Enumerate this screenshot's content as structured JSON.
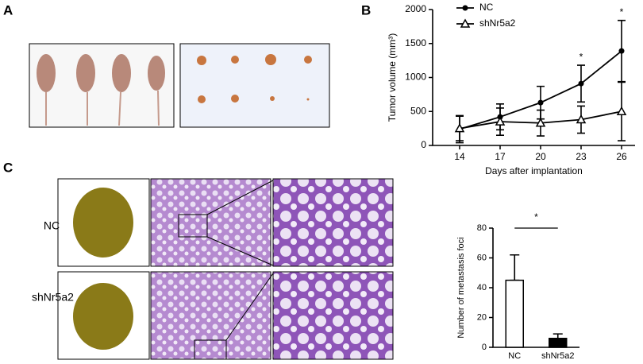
{
  "panels": {
    "a": "A",
    "b": "B",
    "c": "C"
  },
  "rows": [
    "NC",
    "shNr5a2"
  ],
  "chart_data": [
    {
      "type": "line",
      "xlabel": "Days after implantation",
      "ylabel": "Tumor volume (mm³)",
      "x": [
        14,
        17,
        20,
        23,
        26
      ],
      "xlim": [
        12,
        27
      ],
      "xticks": [
        14,
        17,
        20,
        23,
        26
      ],
      "ylim": [
        0,
        2000
      ],
      "yticks": [
        0,
        500,
        1000,
        1500,
        2000
      ],
      "series": [
        {
          "name": "NC",
          "color": "#000000",
          "marker": "circle",
          "values": [
            240,
            420,
            630,
            910,
            1390
          ],
          "errors": [
            200,
            190,
            240,
            270,
            450
          ]
        },
        {
          "name": "shNr5a2",
          "color": "#000000",
          "marker": "triangle",
          "values": [
            250,
            350,
            330,
            380,
            500
          ],
          "errors": [
            180,
            200,
            190,
            200,
            430
          ]
        }
      ],
      "annotations": [
        {
          "text": "*",
          "x": 23
        },
        {
          "text": "*",
          "x": 26
        }
      ]
    },
    {
      "type": "bar",
      "ylabel": "Number of metastasis foci",
      "categories": [
        "NC",
        "shNr5a2"
      ],
      "values": [
        45,
        6
      ],
      "errors": [
        17,
        3
      ],
      "colors": [
        "#ffffff",
        "#000000"
      ],
      "ylim": [
        0,
        80
      ],
      "yticks": [
        0,
        20,
        40,
        60,
        80
      ],
      "annotation": "*"
    }
  ]
}
